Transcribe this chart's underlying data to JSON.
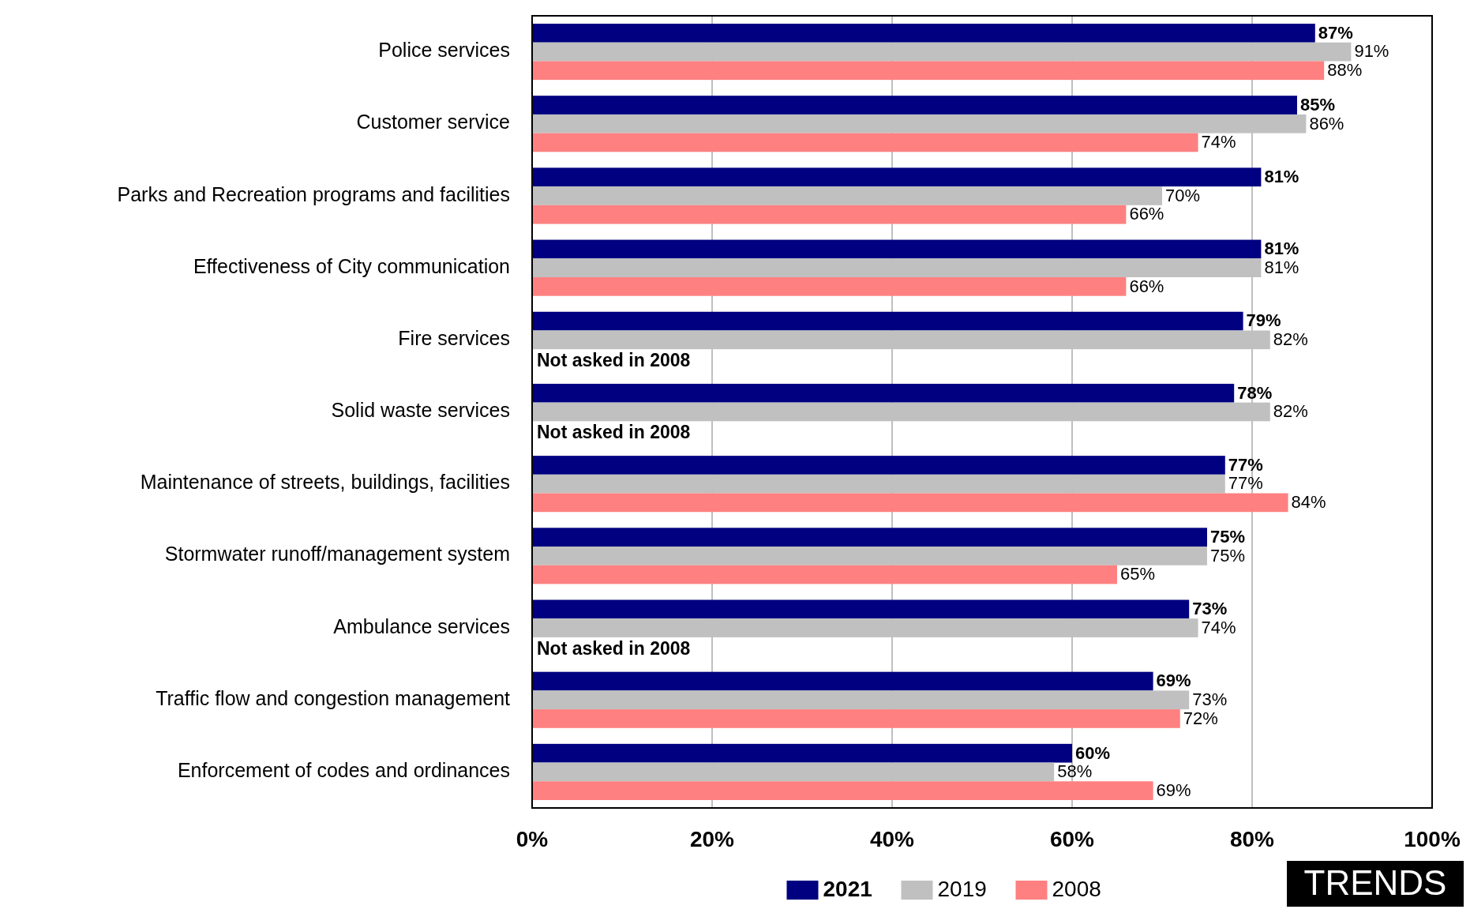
{
  "chart_data": {
    "type": "bar",
    "orientation": "horizontal",
    "categories": [
      "Police services",
      "Customer service",
      "Parks and Recreation programs and facilities",
      "Effectiveness of City communication",
      "Fire services",
      "Solid waste services",
      "Maintenance of streets, buildings, facilities",
      "Stormwater runoff/management system",
      "Ambulance services",
      "Traffic flow and congestion management",
      "Enforcement of codes and ordinances"
    ],
    "series": [
      {
        "name": "2021",
        "color": "#000080",
        "values": [
          87,
          85,
          81,
          81,
          79,
          78,
          77,
          75,
          73,
          69,
          60
        ],
        "value_labels": [
          "87%",
          "85%",
          "81%",
          "81%",
          "79%",
          "78%",
          "77%",
          "75%",
          "73%",
          "69%",
          "60%"
        ]
      },
      {
        "name": "2019",
        "color": "#c0c0c0",
        "values": [
          91,
          86,
          70,
          81,
          82,
          82,
          77,
          75,
          74,
          73,
          58
        ],
        "value_labels": [
          "91%",
          "86%",
          "70%",
          "81%",
          "82%",
          "82%",
          "77%",
          "75%",
          "74%",
          "73%",
          "58%"
        ]
      },
      {
        "name": "2008",
        "color": "#ff8080",
        "values": [
          88,
          74,
          66,
          66,
          null,
          null,
          84,
          65,
          null,
          72,
          69
        ],
        "value_labels": [
          "88%",
          "74%",
          "66%",
          "66%",
          "Not asked in 2008",
          "Not asked in 2008",
          "84%",
          "65%",
          "Not asked in 2008",
          "72%",
          "69%"
        ]
      }
    ],
    "xlim": [
      0,
      100
    ],
    "xticks": [
      {
        "value": 0,
        "label": "0%"
      },
      {
        "value": 20,
        "label": "20%"
      },
      {
        "value": 40,
        "label": "40%"
      },
      {
        "value": 60,
        "label": "60%"
      },
      {
        "value": 80,
        "label": "80%"
      },
      {
        "value": 100,
        "label": "100%"
      }
    ],
    "grid": "x",
    "legend": "bottom",
    "annotations": [
      "TRENDS"
    ]
  }
}
